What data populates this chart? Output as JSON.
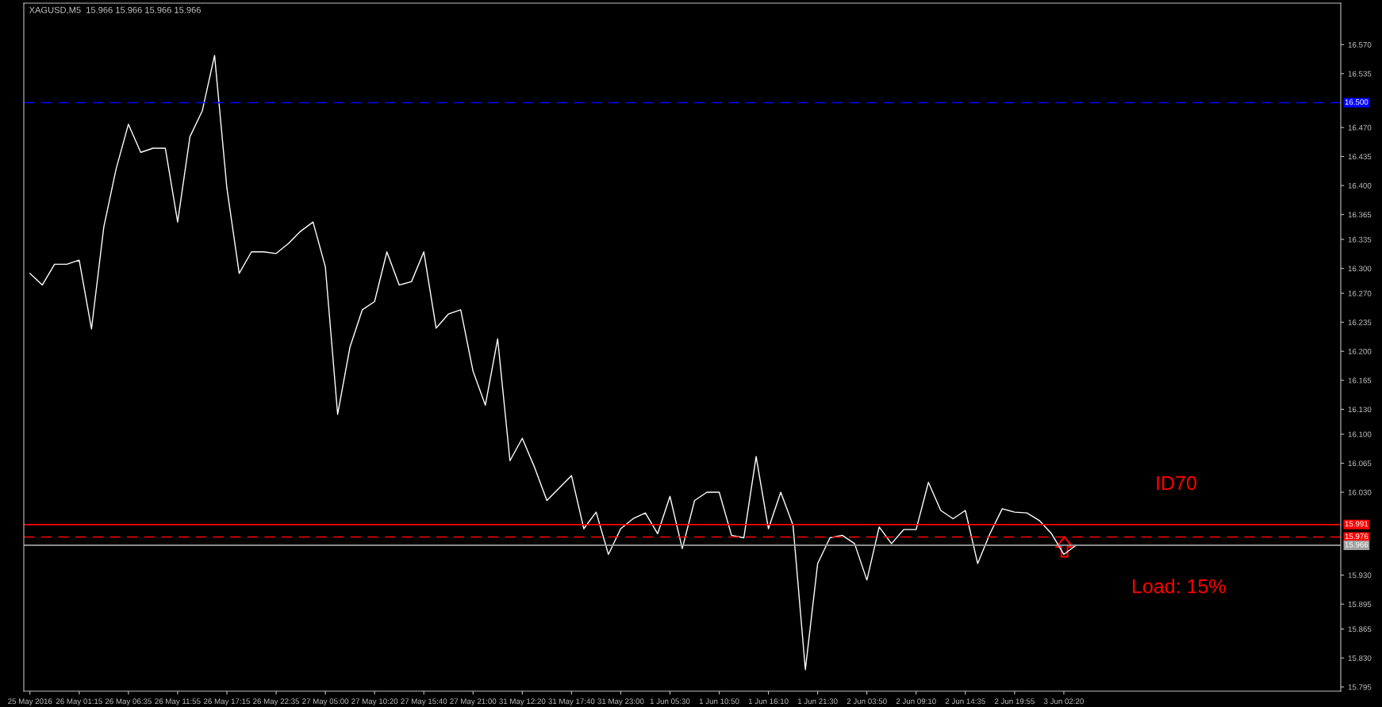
{
  "chart_data": {
    "type": "line",
    "title": "XAGUSD,M5  15.966 15.966 15.966 15.966",
    "categories": [
      "25 May 2016",
      null,
      null,
      null,
      "26 May 01:15",
      null,
      null,
      null,
      "26 May 06:35",
      null,
      null,
      null,
      "26 May 11:55",
      null,
      null,
      null,
      "26 May 17:15",
      null,
      null,
      null,
      "26 May 22:35",
      null,
      null,
      null,
      "27 May 05:00",
      null,
      null,
      null,
      "27 May 10:20",
      null,
      null,
      null,
      "27 May 15:40",
      null,
      null,
      null,
      "27 May 21:00",
      null,
      null,
      null,
      "31 May 12:20",
      null,
      null,
      null,
      "31 May 17:40",
      null,
      null,
      null,
      "31 May 23:00",
      null,
      null,
      null,
      "1 Jun 05:30",
      null,
      null,
      null,
      "1 Jun 10:50",
      null,
      null,
      null,
      "1 Jun 16:10",
      null,
      null,
      null,
      "1 Jun 21:30",
      null,
      null,
      null,
      "2 Jun 03:50",
      null,
      null,
      null,
      "2 Jun 09:10",
      null,
      null,
      null,
      "2 Jun 14:35",
      null,
      null,
      null,
      "2 Jun 19:55",
      null,
      null,
      null,
      "3 Jun 02:20",
      null,
      null,
      null,
      null,
      null,
      null,
      null,
      null,
      null,
      null,
      null,
      null,
      null,
      null,
      null,
      null,
      null,
      null,
      null,
      null,
      null,
      null
    ],
    "series": [
      {
        "color": "#ffffff",
        "values": [
          16.294,
          16.28,
          16.305,
          16.305,
          16.31,
          16.227,
          16.35,
          16.42,
          16.474,
          16.44,
          16.445,
          16.445,
          16.356,
          16.459,
          16.49,
          16.557,
          16.397,
          16.294,
          16.32,
          16.32,
          16.318,
          16.33,
          16.345,
          16.356,
          16.302,
          16.124,
          16.205,
          16.25,
          16.26,
          16.32,
          16.28,
          16.284,
          16.32,
          16.228,
          16.245,
          16.25,
          16.176,
          16.135,
          16.215,
          16.068,
          16.095,
          16.06,
          16.02,
          16.035,
          16.05,
          15.986,
          16.006,
          15.955,
          15.986,
          15.998,
          16.005,
          15.98,
          16.025,
          15.962,
          16.02,
          16.03,
          16.03,
          15.978,
          15.975,
          16.073,
          15.986,
          16.03,
          15.99,
          15.816,
          15.944,
          15.975,
          15.978,
          15.968,
          15.924,
          15.988,
          15.968,
          15.985,
          15.985,
          16.042,
          16.008,
          15.998,
          16.008,
          15.944,
          15.98,
          16.01,
          16.006,
          16.005,
          15.996,
          15.98,
          15.955,
          15.966,
          null,
          null,
          null,
          null,
          null,
          null,
          null,
          null,
          null,
          null,
          null,
          null,
          null,
          null,
          null,
          null,
          null,
          null,
          null,
          null,
          null
        ]
      }
    ],
    "ylim": [
      15.79,
      16.62
    ],
    "yticks": [
      {
        "value": 16.57,
        "label": "16.570"
      },
      {
        "value": 16.535,
        "label": "16.535"
      },
      {
        "value": 16.47,
        "label": "16.470"
      },
      {
        "value": 16.435,
        "label": "16.435"
      },
      {
        "value": 16.4,
        "label": "16.400"
      },
      {
        "value": 16.365,
        "label": "16.365"
      },
      {
        "value": 16.335,
        "label": "16.335"
      },
      {
        "value": 16.3,
        "label": "16.300"
      },
      {
        "value": 16.27,
        "label": "16.270"
      },
      {
        "value": 16.235,
        "label": "16.235"
      },
      {
        "value": 16.2,
        "label": "16.200"
      },
      {
        "value": 16.165,
        "label": "16.165"
      },
      {
        "value": 16.13,
        "label": "16.130"
      },
      {
        "value": 16.1,
        "label": "16.100"
      },
      {
        "value": 16.065,
        "label": "16.065"
      },
      {
        "value": 16.03,
        "label": "16.030"
      },
      {
        "value": 15.93,
        "label": "15.930"
      },
      {
        "value": 15.895,
        "label": "15.895"
      },
      {
        "value": 15.865,
        "label": "15.865"
      },
      {
        "value": 15.83,
        "label": "15.830"
      },
      {
        "value": 15.795,
        "label": "15.795"
      }
    ],
    "ref_lines": [
      {
        "axis": "y",
        "value": 16.5,
        "label": "16.500",
        "color": "#0000ff",
        "line_style": "dashed"
      },
      {
        "axis": "y",
        "value": 15.991,
        "label": "15.991",
        "color": "#ff0000",
        "line_style": "solid"
      },
      {
        "axis": "y",
        "value": 15.976,
        "label": "15.976",
        "color": "#ff0000",
        "line_style": "dashed"
      },
      {
        "axis": "y",
        "value": 15.966,
        "label": "15.966",
        "color": "#a0a0a0",
        "line_style": "solid"
      }
    ],
    "annotations": [
      "ID70",
      "Load: 15%"
    ],
    "grid": false,
    "legend": false,
    "marker": "none",
    "line_style": "solid"
  }
}
